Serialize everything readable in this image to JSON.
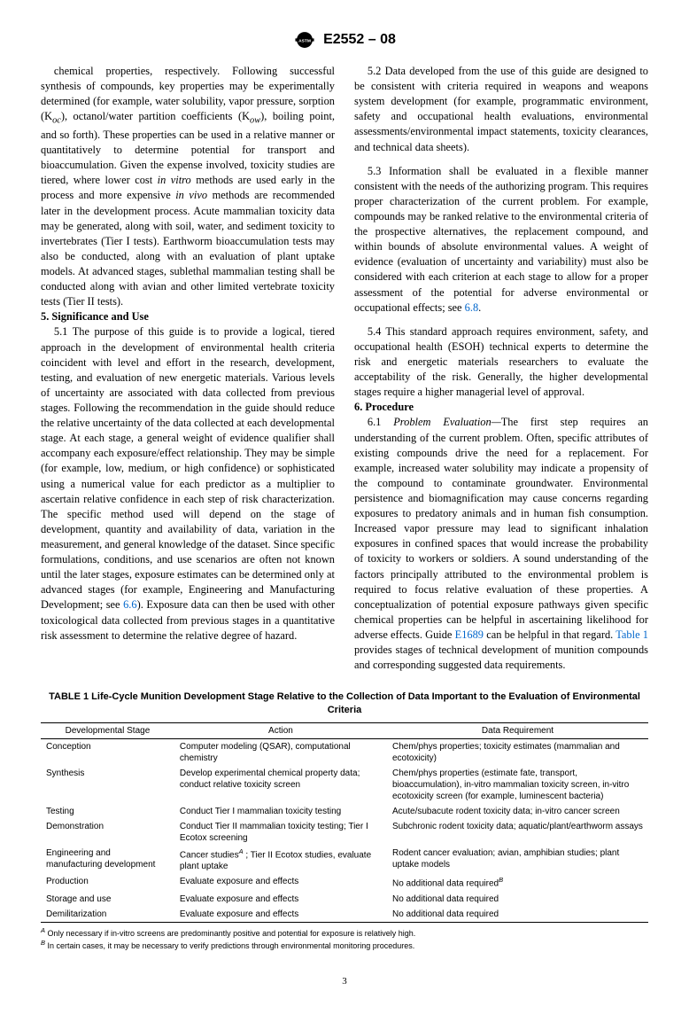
{
  "header": {
    "doc_id": "E2552 – 08"
  },
  "col": {
    "p1": "chemical properties, respectively. Following successful synthesis of compounds, key properties may be experimentally determined (for example, water solubility, vapor pressure, sorption (K",
    "p1_oc": "oc",
    "p1a": "), octanol/water partition coefficients (K",
    "p1_ow": "ow",
    "p1b": "), boiling point, and so forth). These properties can be used in a relative manner or quantitatively to determine potential for transport and bioaccumulation. Given the expense involved, toxicity studies are tiered, where lower cost ",
    "p1_invitro": "in vitro",
    "p1c": " methods are used early in the process and more expensive ",
    "p1_invivo": "in vivo",
    "p1d": " methods are recommended later in the development process. Acute mammalian toxicity data may be generated, along with soil, water, and sediment toxicity to invertebrates (Tier I tests). Earthworm bioaccumulation tests may also be conducted, along with an evaluation of plant uptake models. At advanced stages, sublethal mammalian testing shall be conducted along with avian and other limited vertebrate toxicity tests (Tier II tests).",
    "h5": "5. Significance and Use",
    "p51": "5.1 The purpose of this guide is to provide a logical, tiered approach in the development of environmental health criteria coincident with level and effort in the research, development, testing, and evaluation of new energetic materials. Various levels of uncertainty are associated with data collected from previous stages. Following the recommendation in the guide should reduce the relative uncertainty of the data collected at each developmental stage. At each stage, a general weight of evidence qualifier shall accompany each exposure/effect relationship. They may be simple (for example, low, medium, or high confidence) or sophisticated using a numerical value for each predictor as a multiplier to ascertain relative confidence in each step of risk characterization. The specific method used will depend on the stage of development, quantity and availability of data, variation in the measurement, and general knowledge of the dataset. Since specific formulations, conditions, and use scenarios are often not known until the later stages, exposure estimates can be determined only at advanced stages (for example, Engineering and Manufacturing Development; see ",
    "p51_link": "6.6",
    "p51b": "). Exposure data can then be used with other toxicological data collected from previous stages in a quantitative risk assessment to determine the relative degree of hazard.",
    "p52": "5.2 Data developed from the use of this guide are designed to be consistent with criteria required in weapons and weapons system development (for example, programmatic environment, safety and occupational health evaluations, environmental assessments/environmental impact statements, toxicity clearances, and technical data sheets).",
    "p53": "5.3 Information shall be evaluated in a flexible manner consistent with the needs of the authorizing program. This requires proper characterization of the current problem. For example, compounds may be ranked relative to the environmental criteria of the prospective alternatives, the replacement compound, and within bounds of absolute environmental values. A weight of evidence (evaluation of uncertainty and variability) must also be considered with each criterion at each stage to allow for a proper assessment of the potential for adverse environmental or occupational effects; see ",
    "p53_link": "6.8",
    "p53b": ".",
    "p54": "5.4 This standard approach requires environment, safety, and occupational health (ESOH) technical experts to determine the risk and energetic materials researchers to evaluate the acceptability of the risk. Generally, the higher developmental stages require a higher managerial level of approval.",
    "h6": "6. Procedure",
    "p61a": "6.1 ",
    "p61_ital": "Problem Evaluation—",
    "p61b": "The first step requires an understanding of the current problem. Often, specific attributes of existing compounds drive the need for a replacement. For example, increased water solubility may indicate a propensity of the compound to contaminate groundwater. Environmental persistence and biomagnification may cause concerns regarding exposures to predatory animals and in human fish consumption. Increased vapor pressure may lead to significant inhalation exposures in confined spaces that would increase the probability of toxicity to workers or soldiers. A sound understanding of the factors principally attributed to the environmental problem is required to focus relative evaluation of these properties. A conceptualization of potential exposure pathways given specific chemical properties can be helpful in ascertaining likelihood for adverse effects. Guide ",
    "p61_link1": "E1689",
    "p61c": " can be helpful in that regard. ",
    "p61_link2": "Table 1",
    "p61d": " provides stages of technical development of munition compounds and corresponding suggested data requirements."
  },
  "table": {
    "title": "TABLE 1 Life-Cycle Munition Development Stage Relative to the Collection of Data Important to the Evaluation of Environmental Criteria",
    "headers": [
      "Developmental Stage",
      "Action",
      "Data Requirement"
    ],
    "col_widths": [
      "22%",
      "35%",
      "43%"
    ],
    "rows": [
      [
        "Conception",
        "Computer modeling (QSAR), computational chemistry",
        "Chem/phys properties; toxicity estimates (mammalian and ecotoxicity)"
      ],
      [
        "Synthesis",
        "Develop experimental chemical property data; conduct relative toxicity screen",
        "Chem/phys properties (estimate fate, transport, bioaccumulation), in-vitro mammalian toxicity screen, in-vitro ecotoxicity screen (for example, luminescent bacteria)"
      ],
      [
        "Testing",
        "Conduct Tier I mammalian toxicity testing",
        "Acute/subacute rodent toxicity data; in-vitro cancer screen"
      ],
      [
        "Demonstration",
        "Conduct Tier II mammalian toxicity testing; Tier I Ecotox screening",
        "Subchronic rodent toxicity data; aquatic/plant/earthworm assays"
      ],
      [
        "Engineering and manufacturing development",
        "Cancer studiesA ; Tier II Ecotox studies, evaluate plant uptake",
        "Rodent cancer evaluation; avian, amphibian studies; plant uptake models"
      ],
      [
        "Production",
        "Evaluate exposure and effects",
        "No additional data requiredB"
      ],
      [
        "Storage and use",
        "Evaluate exposure and effects",
        "No additional data required"
      ],
      [
        "Demilitarization",
        "Evaluate exposure and effects",
        "No additional data required"
      ]
    ],
    "footA": "A Only necessary if in-vitro screens are predominantly positive and potential for exposure is relatively high.",
    "footB": "B In certain cases, it may be necessary to verify predictions through environmental monitoring procedures."
  },
  "pagenum": "3"
}
